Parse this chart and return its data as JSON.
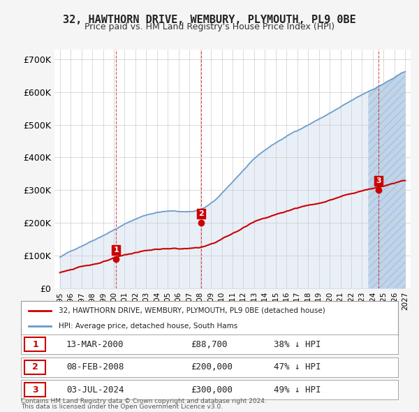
{
  "title": "32, HAWTHORN DRIVE, WEMBURY, PLYMOUTH, PL9 0BE",
  "subtitle": "Price paid vs. HM Land Registry's House Price Index (HPI)",
  "legend_property": "32, HAWTHORN DRIVE, WEMBURY, PLYMOUTH, PL9 0BE (detached house)",
  "legend_hpi": "HPI: Average price, detached house, South Hams",
  "footer1": "Contains HM Land Registry data © Crown copyright and database right 2024.",
  "footer2": "This data is licensed under the Open Government Licence v3.0.",
  "sales": [
    {
      "num": 1,
      "date": "13-MAR-2000",
      "price": 88700,
      "pct": "38% ↓ HPI",
      "x": 2000.2
    },
    {
      "num": 2,
      "date": "08-FEB-2008",
      "price": 200000,
      "pct": "47% ↓ HPI",
      "x": 2008.1
    },
    {
      "num": 3,
      "date": "03-JUL-2024",
      "price": 300000,
      "pct": "49% ↓ HPI",
      "x": 2024.5
    }
  ],
  "property_color": "#cc0000",
  "hpi_color": "#6699cc",
  "hpi_fill_color": "#d0e4f5",
  "hatch_color": "#aabbcc",
  "sale_marker_color": "#cc0000",
  "vline_color": "#cc0000",
  "grid_color": "#cccccc",
  "bg_color": "#f5f5f5",
  "plot_bg_color": "#ffffff",
  "ylim": [
    0,
    730000
  ],
  "xlim_start": 1994.5,
  "xlim_end": 2027.5,
  "yticks": [
    0,
    100000,
    200000,
    300000,
    400000,
    500000,
    600000,
    700000
  ],
  "ytick_labels": [
    "£0",
    "£100K",
    "£200K",
    "£300K",
    "£400K",
    "£500K",
    "£600K",
    "£700K"
  ],
  "xticks": [
    1995,
    1996,
    1997,
    1998,
    1999,
    2000,
    2001,
    2002,
    2003,
    2004,
    2005,
    2006,
    2007,
    2008,
    2009,
    2010,
    2011,
    2012,
    2013,
    2014,
    2015,
    2016,
    2017,
    2018,
    2019,
    2020,
    2021,
    2022,
    2023,
    2024,
    2025,
    2026,
    2027
  ]
}
